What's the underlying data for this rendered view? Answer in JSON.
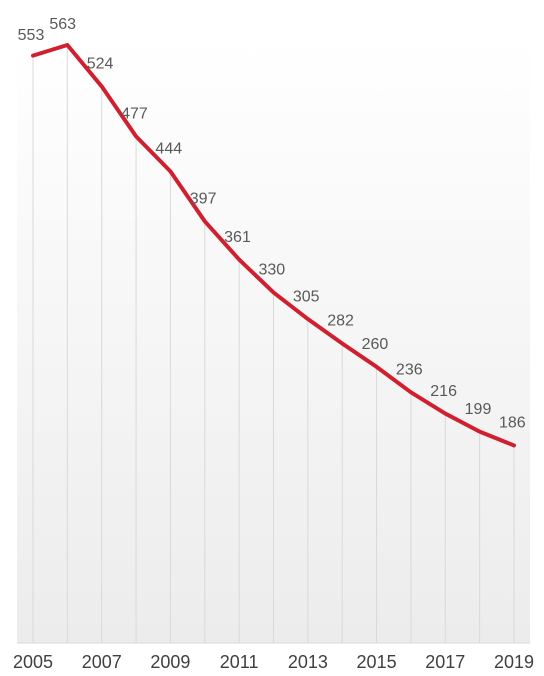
{
  "chart_data": {
    "type": "line",
    "title": "",
    "xlabel": "",
    "ylabel": "",
    "x": [
      2005,
      2006,
      2007,
      2008,
      2009,
      2010,
      2011,
      2012,
      2013,
      2014,
      2015,
      2016,
      2017,
      2018,
      2019
    ],
    "x_tick_labels": [
      "2005",
      "2007",
      "2009",
      "2011",
      "2013",
      "2015",
      "2017",
      "2019"
    ],
    "series": [
      {
        "values": [
          553,
          563,
          524,
          477,
          444,
          397,
          361,
          330,
          305,
          282,
          260,
          236,
          216,
          199,
          186
        ],
        "data_labels": [
          "553",
          "563",
          "524",
          "477",
          "444",
          "397",
          "361",
          "330",
          "305",
          "282",
          "260",
          "236",
          "216",
          "199",
          "186"
        ],
        "color": "#d01f2f"
      }
    ],
    "ylim": [
      0,
      563
    ],
    "grid": "vertical lines at each year",
    "legend": "none",
    "background": "white-to-light-gray vertical gradient",
    "colors": {
      "line": "#d01f2f",
      "grid": "#d9d9d9",
      "data_label": "#595959",
      "tick_label": "#404040"
    }
  }
}
